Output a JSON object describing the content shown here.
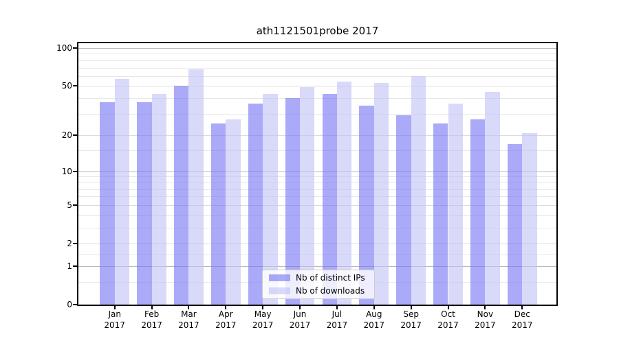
{
  "chart_data": {
    "type": "bar",
    "title": "ath1121501probe 2017",
    "categories": [
      "Jan 2017",
      "Feb 2017",
      "Mar 2017",
      "Apr 2017",
      "May 2017",
      "Jun 2017",
      "Jul 2017",
      "Aug 2017",
      "Sep 2017",
      "Oct 2017",
      "Nov 2017",
      "Dec 2017"
    ],
    "x_tick_labels": [
      {
        "month": "Jan",
        "year": "2017"
      },
      {
        "month": "Feb",
        "year": "2017"
      },
      {
        "month": "Mar",
        "year": "2017"
      },
      {
        "month": "Apr",
        "year": "2017"
      },
      {
        "month": "May",
        "year": "2017"
      },
      {
        "month": "Jun",
        "year": "2017"
      },
      {
        "month": "Jul",
        "year": "2017"
      },
      {
        "month": "Aug",
        "year": "2017"
      },
      {
        "month": "Sep",
        "year": "2017"
      },
      {
        "month": "Oct",
        "year": "2017"
      },
      {
        "month": "Nov",
        "year": "2017"
      },
      {
        "month": "Dec",
        "year": "2017"
      }
    ],
    "series": [
      {
        "name": "Nb of distinct IPs",
        "color": "#7272f5",
        "opacity": 0.6,
        "values": [
          37,
          37,
          50,
          25,
          36,
          40,
          43,
          35,
          29,
          25,
          27,
          17
        ]
      },
      {
        "name": "Nb of downloads",
        "color": "#c0c0f5",
        "opacity": 0.6,
        "values": [
          57,
          43,
          68,
          27,
          43,
          49,
          54,
          53,
          60,
          36,
          45,
          21
        ]
      }
    ],
    "y_axis": {
      "scale": "log(1+y)",
      "ylim": [
        0,
        110
      ],
      "ticks": [
        {
          "value": 100,
          "label": "100",
          "strong": true
        },
        {
          "value": 50,
          "label": "50",
          "strong": false
        },
        {
          "value": 20,
          "label": "20",
          "strong": false
        },
        {
          "value": 10,
          "label": "10",
          "strong": true
        },
        {
          "value": 5,
          "label": "5",
          "strong": false
        },
        {
          "value": 2,
          "label": "2",
          "strong": false
        },
        {
          "value": 1,
          "label": "1",
          "strong": true
        },
        {
          "value": 0,
          "label": "0",
          "strong": false
        }
      ],
      "minor_gridlines": [
        0.5,
        1.5,
        3,
        4,
        6,
        7,
        8,
        9,
        15,
        30,
        40,
        60,
        70,
        80,
        90
      ]
    },
    "grid": true,
    "legend": {
      "position": "lower center",
      "labels": [
        "Nb of distinct IPs",
        "Nb of downloads"
      ]
    }
  }
}
